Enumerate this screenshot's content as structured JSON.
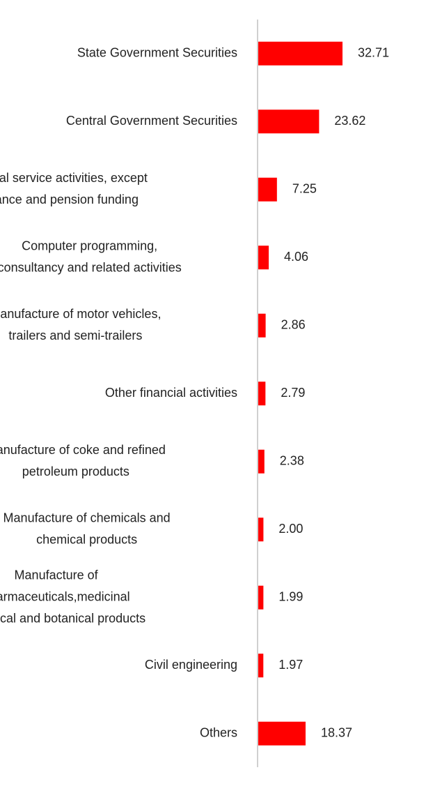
{
  "chart_data": {
    "type": "bar",
    "orientation": "horizontal",
    "categories": [
      [
        "State Government Securities"
      ],
      [
        "Central Government Securities"
      ],
      [
        "Financial service activities, except",
        "insurance and pension funding"
      ],
      [
        "Computer programming,",
        "consultancy and related activities"
      ],
      [
        "Manufacture of motor vehicles,",
        "trailers and semi-trailers"
      ],
      [
        "Other financial activities"
      ],
      [
        "Manufacture of coke and refined",
        "petroleum products"
      ],
      [
        "Manufacture of chemicals and",
        "chemical products"
      ],
      [
        "Manufacture of",
        "pharmaceuticals,medicinal",
        "chemical and botanical products"
      ],
      [
        "Civil engineering"
      ],
      [
        "Others"
      ]
    ],
    "values": [
      32.71,
      23.62,
      7.25,
      4.06,
      2.86,
      2.79,
      2.38,
      2.0,
      1.99,
      1.97,
      18.37
    ],
    "value_labels": [
      "32.71",
      "23.62",
      "7.25",
      "4.06",
      "2.86",
      "2.79",
      "2.38",
      "2.00",
      "1.99",
      "1.97",
      "18.37"
    ],
    "xlim": [
      0,
      32.71
    ],
    "grid": false,
    "legend": "none",
    "colors": {
      "bar": "#ff0000",
      "axis": "#d0d0d0",
      "text": "#222222"
    }
  }
}
